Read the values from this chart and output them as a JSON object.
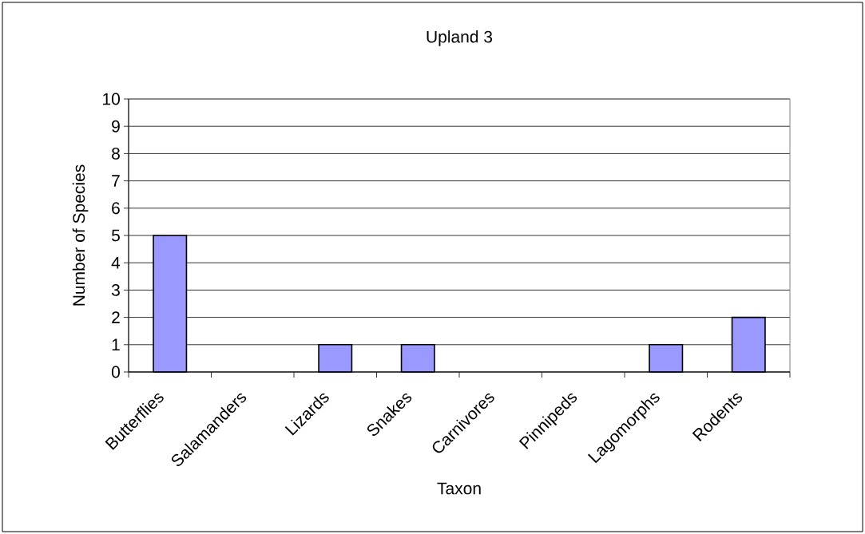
{
  "chart_data": {
    "type": "bar",
    "title": "Upland 3",
    "xlabel": "Taxon",
    "ylabel": "Number of Species",
    "categories": [
      "Butterflies",
      "Salamanders",
      "Lizards",
      "Snakes",
      "Carnivores",
      "Pinnipeds",
      "Lagomorphs",
      "Rodents"
    ],
    "values": [
      5,
      0,
      1,
      1,
      0,
      0,
      1,
      2
    ],
    "color": "#9999ff",
    "ylim": [
      0,
      10
    ],
    "yticks": [
      0,
      1,
      2,
      3,
      4,
      5,
      6,
      7,
      8,
      9,
      10
    ],
    "grid": "y"
  }
}
